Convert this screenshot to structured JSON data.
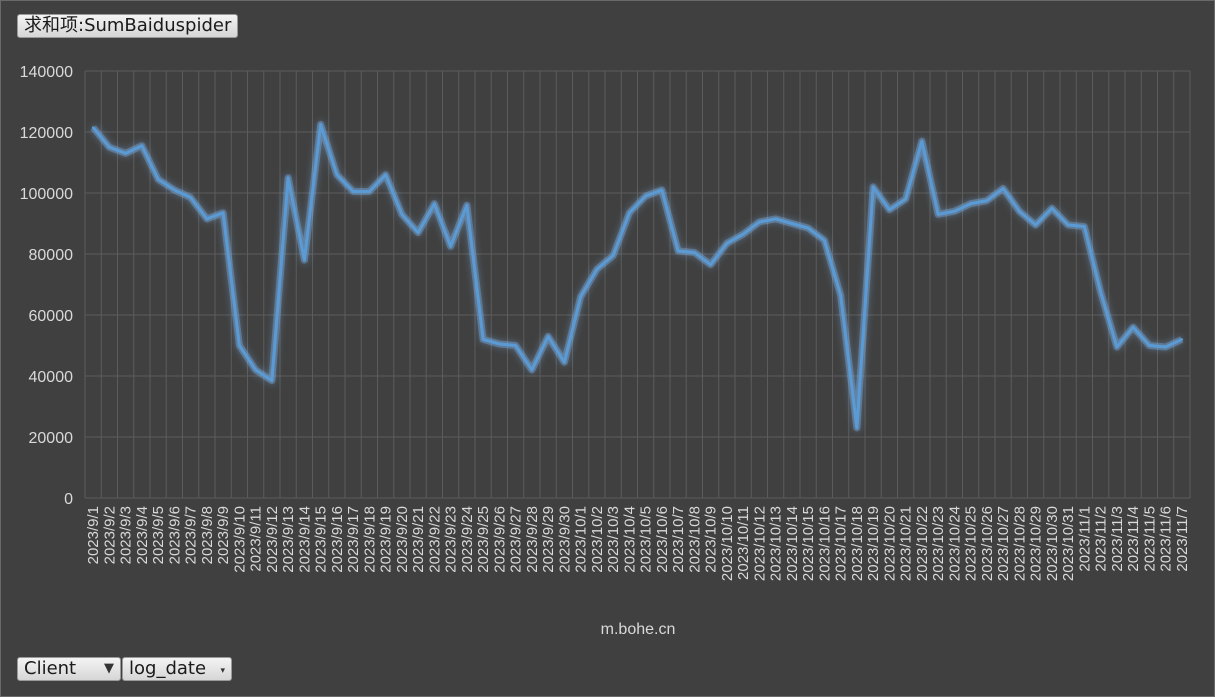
{
  "value_field": {
    "label": "求和项:SumBaiduspider"
  },
  "filter_buttons": [
    {
      "label": "Client",
      "icon": "filter-icon"
    },
    {
      "label": "log_date",
      "icon": "dropdown-arrow-icon"
    }
  ],
  "colors": {
    "background": "#404040",
    "line": "#5b9bd5",
    "glow": "#7fb8f0",
    "grid": "#5c5c5c",
    "text": "#d9d9d9"
  },
  "chart_data": {
    "type": "line",
    "title": "",
    "xlabel": "m.bohe.cn",
    "ylabel": "",
    "ylim": [
      0,
      140000
    ],
    "yticks": [
      0,
      20000,
      40000,
      60000,
      80000,
      100000,
      120000,
      140000
    ],
    "grid": true,
    "categories": [
      "2023/9/1",
      "2023/9/2",
      "2023/9/3",
      "2023/9/4",
      "2023/9/5",
      "2023/9/6",
      "2023/9/7",
      "2023/9/8",
      "2023/9/9",
      "2023/9/10",
      "2023/9/11",
      "2023/9/12",
      "2023/9/13",
      "2023/9/14",
      "2023/9/15",
      "2023/9/16",
      "2023/9/17",
      "2023/9/18",
      "2023/9/19",
      "2023/9/20",
      "2023/9/21",
      "2023/9/22",
      "2023/9/23",
      "2023/9/24",
      "2023/9/25",
      "2023/9/26",
      "2023/9/27",
      "2023/9/28",
      "2023/9/29",
      "2023/9/30",
      "2023/10/1",
      "2023/10/2",
      "2023/10/3",
      "2023/10/4",
      "2023/10/5",
      "2023/10/6",
      "2023/10/7",
      "2023/10/8",
      "2023/10/9",
      "2023/10/10",
      "2023/10/11",
      "2023/10/12",
      "2023/10/13",
      "2023/10/14",
      "2023/10/15",
      "2023/10/16",
      "2023/10/17",
      "2023/10/18",
      "2023/10/19",
      "2023/10/20",
      "2023/10/21",
      "2023/10/22",
      "2023/10/23",
      "2023/10/24",
      "2023/10/25",
      "2023/10/26",
      "2023/10/27",
      "2023/10/28",
      "2023/10/29",
      "2023/10/30",
      "2023/10/31",
      "2023/11/1",
      "2023/11/2",
      "2023/11/3",
      "2023/11/4",
      "2023/11/5",
      "2023/11/6",
      "2023/11/7"
    ],
    "series": [
      {
        "values": [
          121500,
          115000,
          113000,
          115500,
          104500,
          101000,
          98500,
          91500,
          93500,
          50000,
          42000,
          38500,
          105000,
          78000,
          122500,
          106000,
          100500,
          100500,
          106000,
          93000,
          87000,
          96500,
          82500,
          96000,
          52000,
          50500,
          50000,
          42000,
          53000,
          44500,
          66000,
          75000,
          79500,
          93500,
          99000,
          101000,
          81000,
          80500,
          76500,
          83500,
          86500,
          90500,
          91500,
          90000,
          88500,
          84500,
          66500,
          23000,
          102000,
          94500,
          98000,
          117000,
          93000,
          94000,
          96500,
          97500,
          101500,
          94000,
          89500,
          95000,
          89500,
          89000,
          67500,
          49500,
          56000,
          50000,
          49500,
          52000
        ]
      }
    ]
  }
}
